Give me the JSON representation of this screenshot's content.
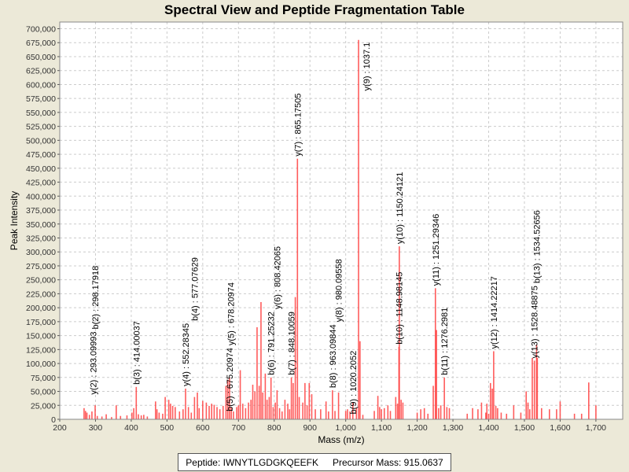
{
  "chart_data": {
    "type": "bar",
    "title": "Spectral View and Peptide Fragmentation Table",
    "xlabel": "Mass (m/z)",
    "ylabel": "Peak Intensity",
    "xlim": [
      200,
      1775
    ],
    "ylim": [
      0,
      712000
    ],
    "x_ticks": [
      200,
      300,
      400,
      500,
      600,
      700,
      800,
      900,
      1000,
      1100,
      1200,
      1300,
      1400,
      1500,
      1600,
      1700
    ],
    "x_tick_labels": [
      "200",
      "300",
      "400",
      "500",
      "600",
      "700",
      "800",
      "900",
      "1,000",
      "1,100",
      "1,200",
      "1,300",
      "1,400",
      "1,500",
      "1,600",
      "1,700"
    ],
    "y_ticks": [
      0,
      25000,
      50000,
      75000,
      100000,
      125000,
      150000,
      175000,
      200000,
      225000,
      250000,
      275000,
      300000,
      325000,
      350000,
      375000,
      400000,
      425000,
      450000,
      475000,
      500000,
      525000,
      550000,
      575000,
      600000,
      625000,
      650000,
      675000,
      700000
    ],
    "y_tick_labels": [
      "0",
      "25,000",
      "50,000",
      "75,000",
      "100,000",
      "125,000",
      "150,000",
      "175,000",
      "200,000",
      "225,000",
      "250,000",
      "275,000",
      "300,000",
      "325,000",
      "350,000",
      "375,000",
      "400,000",
      "425,000",
      "450,000",
      "475,000",
      "500,000",
      "525,000",
      "550,000",
      "575,000",
      "600,000",
      "625,000",
      "650,000",
      "675,000",
      "700,000"
    ],
    "grid": true,
    "series_color": "#ff4040",
    "peaks": [
      [
        268,
        20000
      ],
      [
        272,
        15000
      ],
      [
        276,
        12000
      ],
      [
        283,
        8000
      ],
      [
        290,
        14000
      ],
      [
        299,
        25000
      ],
      [
        305,
        6000
      ],
      [
        318,
        5000
      ],
      [
        330,
        9000
      ],
      [
        345,
        4000
      ],
      [
        358,
        25000
      ],
      [
        370,
        6000
      ],
      [
        388,
        7000
      ],
      [
        402,
        12000
      ],
      [
        407,
        20000
      ],
      [
        414,
        58000
      ],
      [
        420,
        9000
      ],
      [
        428,
        7000
      ],
      [
        435,
        8000
      ],
      [
        445,
        5000
      ],
      [
        468,
        32000
      ],
      [
        472,
        18000
      ],
      [
        478,
        12000
      ],
      [
        488,
        10000
      ],
      [
        495,
        40000
      ],
      [
        505,
        35000
      ],
      [
        510,
        28000
      ],
      [
        516,
        24000
      ],
      [
        523,
        22000
      ],
      [
        535,
        14000
      ],
      [
        545,
        18000
      ],
      [
        552,
        55000
      ],
      [
        560,
        22000
      ],
      [
        568,
        12000
      ],
      [
        577,
        40000
      ],
      [
        585,
        48000
      ],
      [
        590,
        20000
      ],
      [
        600,
        33000
      ],
      [
        610,
        30000
      ],
      [
        618,
        24000
      ],
      [
        625,
        28000
      ],
      [
        632,
        26000
      ],
      [
        640,
        22000
      ],
      [
        648,
        18000
      ],
      [
        657,
        24000
      ],
      [
        665,
        60000
      ],
      [
        670,
        70000
      ],
      [
        675,
        75000
      ],
      [
        680,
        22000
      ],
      [
        686,
        14000
      ],
      [
        695,
        22000
      ],
      [
        700,
        25000
      ],
      [
        705,
        88000
      ],
      [
        712,
        28000
      ],
      [
        720,
        20000
      ],
      [
        728,
        30000
      ],
      [
        735,
        35000
      ],
      [
        740,
        62000
      ],
      [
        746,
        50000
      ],
      [
        752,
        165000
      ],
      [
        758,
        60000
      ],
      [
        763,
        210000
      ],
      [
        768,
        48000
      ],
      [
        775,
        82000
      ],
      [
        780,
        35000
      ],
      [
        786,
        40000
      ],
      [
        791,
        75000
      ],
      [
        797,
        22000
      ],
      [
        803,
        30000
      ],
      [
        808,
        52000
      ],
      [
        815,
        20000
      ],
      [
        822,
        14000
      ],
      [
        830,
        35000
      ],
      [
        838,
        28000
      ],
      [
        843,
        18000
      ],
      [
        848,
        75000
      ],
      [
        853,
        65000
      ],
      [
        859,
        219000
      ],
      [
        865,
        467000
      ],
      [
        870,
        40000
      ],
      [
        880,
        30000
      ],
      [
        886,
        65000
      ],
      [
        892,
        25000
      ],
      [
        898,
        65000
      ],
      [
        905,
        45000
      ],
      [
        915,
        18000
      ],
      [
        930,
        18000
      ],
      [
        945,
        32000
      ],
      [
        952,
        14000
      ],
      [
        963,
        52000
      ],
      [
        970,
        15000
      ],
      [
        980,
        48000
      ],
      [
        1000,
        15000
      ],
      [
        1005,
        18000
      ],
      [
        1012,
        14000
      ],
      [
        1020,
        30000
      ],
      [
        1030,
        20000
      ],
      [
        1036,
        680000
      ],
      [
        1040,
        140000
      ],
      [
        1048,
        8000
      ],
      [
        1080,
        15000
      ],
      [
        1090,
        42000
      ],
      [
        1095,
        22000
      ],
      [
        1100,
        18000
      ],
      [
        1108,
        20000
      ],
      [
        1118,
        25000
      ],
      [
        1125,
        15000
      ],
      [
        1140,
        40000
      ],
      [
        1145,
        28000
      ],
      [
        1149,
        130000
      ],
      [
        1150,
        310000
      ],
      [
        1155,
        35000
      ],
      [
        1160,
        30000
      ],
      [
        1200,
        12000
      ],
      [
        1210,
        18000
      ],
      [
        1220,
        20000
      ],
      [
        1230,
        10000
      ],
      [
        1245,
        60000
      ],
      [
        1251,
        235000
      ],
      [
        1254,
        160000
      ],
      [
        1260,
        20000
      ],
      [
        1266,
        25000
      ],
      [
        1276,
        75000
      ],
      [
        1283,
        22000
      ],
      [
        1290,
        20000
      ],
      [
        1340,
        10000
      ],
      [
        1355,
        20000
      ],
      [
        1370,
        18000
      ],
      [
        1380,
        30000
      ],
      [
        1392,
        12000
      ],
      [
        1395,
        28000
      ],
      [
        1400,
        10000
      ],
      [
        1405,
        65000
      ],
      [
        1410,
        55000
      ],
      [
        1414,
        122000
      ],
      [
        1420,
        24000
      ],
      [
        1425,
        20000
      ],
      [
        1435,
        12000
      ],
      [
        1450,
        10000
      ],
      [
        1470,
        25000
      ],
      [
        1490,
        12000
      ],
      [
        1505,
        50000
      ],
      [
        1510,
        30000
      ],
      [
        1515,
        18000
      ],
      [
        1522,
        110000
      ],
      [
        1528,
        105000
      ],
      [
        1534,
        134000
      ],
      [
        1536,
        110000
      ],
      [
        1548,
        20000
      ],
      [
        1570,
        18000
      ],
      [
        1590,
        18000
      ],
      [
        1600,
        32000
      ],
      [
        1640,
        10000
      ],
      [
        1660,
        10000
      ],
      [
        1680,
        66000
      ],
      [
        1700,
        25000
      ]
    ],
    "annotations": [
      {
        "label": "y(2) : 293.09993",
        "mz": 293,
        "intensity": 40000
      },
      {
        "label": "b(2) : 298.17918",
        "mz": 299,
        "intensity": 40000
      },
      {
        "label": "b(3) : 414.00037",
        "mz": 414,
        "intensity": 58000
      },
      {
        "label": "y(4) : 552.28345",
        "mz": 552,
        "intensity": 55000
      },
      {
        "label": "b(4) : 577.07629",
        "mz": 577,
        "intensity": 40000
      },
      {
        "label": "b(5) : 675.20974",
        "mz": 675,
        "intensity": 10000
      },
      {
        "label": "y(5) : 678.20974",
        "mz": 678,
        "intensity": 65000
      },
      {
        "label": "b(6) : 791.25232",
        "mz": 791,
        "intensity": 75000
      },
      {
        "label": "y(6) : 808.42065",
        "mz": 808,
        "intensity": 52000
      },
      {
        "label": "b(7) : 848.10059",
        "mz": 848,
        "intensity": 75000
      },
      {
        "label": "y(7) : 865.17505",
        "mz": 865,
        "intensity": 467000
      },
      {
        "label": "b(8) : 963.09844",
        "mz": 963,
        "intensity": 52000
      },
      {
        "label": "y(8) : 980.09558",
        "mz": 980,
        "intensity": 48000
      },
      {
        "label": "b(9) : 1020.2052",
        "mz": 1020,
        "intensity": 5000
      },
      {
        "label": "y(9) : 1037.1",
        "mz": 1036,
        "intensity": 680000
      },
      {
        "label": "b(10) : 1148.98145",
        "mz": 1149,
        "intensity": 130000
      },
      {
        "label": "y(10) : 1150.24121",
        "mz": 1150,
        "intensity": 310000
      },
      {
        "label": "y(11) : 1251.29346",
        "mz": 1251,
        "intensity": 235000
      },
      {
        "label": "b(11) : 1276.2981",
        "mz": 1276,
        "intensity": 75000
      },
      {
        "label": "y(12) : 1414.22217",
        "mz": 1414,
        "intensity": 122000
      },
      {
        "label": "y(13) : 1528.48875",
        "mz": 1528,
        "intensity": 105000
      },
      {
        "label": "b(13) : 1534.52656",
        "mz": 1534,
        "intensity": 134000
      }
    ]
  },
  "legend": {
    "peptide": "Peptide: IWNYTLGDGKQEEFK",
    "precursor": "Precursor Mass: 915.0637"
  }
}
